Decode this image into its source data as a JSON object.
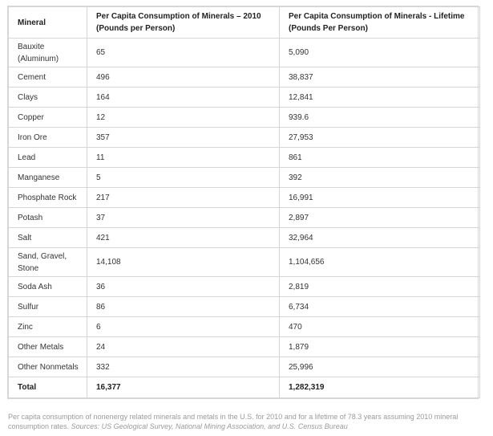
{
  "table": {
    "headers": [
      "Mineral",
      "Per Capita Consumption of Minerals – 2010 (Pounds per Person)",
      "Per Capita Consumption of Minerals - Lifetime (Pounds Per Person)"
    ],
    "rows": [
      [
        "Bauxite (Aluminum)",
        "65",
        "5,090"
      ],
      [
        "Cement",
        "496",
        "38,837"
      ],
      [
        "Clays",
        "164",
        "12,841"
      ],
      [
        "Copper",
        "12",
        "939.6"
      ],
      [
        "Iron Ore",
        "357",
        "27,953"
      ],
      [
        "Lead",
        "11",
        "861"
      ],
      [
        "Manganese",
        "5",
        "392"
      ],
      [
        "Phosphate Rock",
        "217",
        "16,991"
      ],
      [
        "Potash",
        "37",
        "2,897"
      ],
      [
        "Salt",
        "421",
        "32,964"
      ],
      [
        "Sand, Gravel, Stone",
        "14,108",
        "1,104,656"
      ],
      [
        "Soda Ash",
        "36",
        "2,819"
      ],
      [
        "Sulfur",
        "86",
        "6,734"
      ],
      [
        "Zinc",
        "6",
        "470"
      ],
      [
        "Other Metals",
        "24",
        "1,879"
      ],
      [
        "Other Nonmetals",
        "332",
        "25,996"
      ]
    ],
    "total": [
      "Total",
      "16,377",
      "1,282,319"
    ]
  },
  "caption": {
    "text": "Per capita consumption of nonenergy related minerals and metals in the U.S. for 2010 and for a lifetime of 78.3 years assuming 2010 mineral consumption rates.",
    "sources": "Sources: US Geological Survey, National Mining Association, and U.S. Census Bureau"
  }
}
